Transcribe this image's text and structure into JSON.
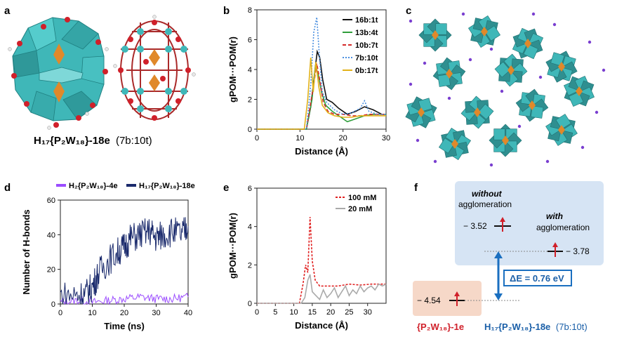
{
  "panels": {
    "a": {
      "label": "a",
      "caption_main": "H₁₇{P₂W₁₈}-18e",
      "caption_note": "(7b:10t)"
    },
    "b": {
      "label": "b"
    },
    "c": {
      "label": "c"
    },
    "d": {
      "label": "d"
    },
    "e": {
      "label": "e"
    },
    "f": {
      "label": "f",
      "without_line1": "without",
      "without_line2": "agglomeration",
      "with_line1": "with",
      "with_line2": "agglomeration",
      "e_without": "− 3.52",
      "e_with": "− 3.78",
      "e_bare": "− 4.54",
      "delta": "ΔE = 0.76 eV",
      "bare_label": "{P₂W₁₈}-1e",
      "agg_label": "H₁₇{P₂W₁₈}-18e",
      "agg_note": "(7b:10t)"
    }
  },
  "colors": {
    "polyhedra": "#3fb7b8",
    "phosphorus": "#e0892a",
    "oxygen": "#d0202a",
    "cation": "#7a3fd0",
    "bare_box": "#f6d8c8",
    "agg_box": "#d6e4f4",
    "delta_arrow": "#1a6fc0"
  },
  "chart_data": [
    {
      "panel": "b",
      "type": "line",
      "title": "",
      "xlabel": "Distance (Å)",
      "ylabel": "gPOM···POM(r)",
      "xlim": [
        0,
        30
      ],
      "ylim": [
        0,
        8
      ],
      "xticks": [
        0,
        10,
        20,
        30
      ],
      "yticks": [
        0,
        2,
        4,
        6,
        8
      ],
      "legend_position": "top-right",
      "series": [
        {
          "name": "16b:1t",
          "color": "#111111",
          "dash": "",
          "x": [
            0,
            11.5,
            12.5,
            13.3,
            14.0,
            14.6,
            15.3,
            16.2,
            17.5,
            19,
            21,
            23,
            25,
            27,
            29,
            30
          ],
          "y": [
            0,
            0,
            1.5,
            3.5,
            5.2,
            4.8,
            3.3,
            2.0,
            1.8,
            1.4,
            1.0,
            1.2,
            1.5,
            1.3,
            1.0,
            1.0
          ]
        },
        {
          "name": "13b:4t",
          "color": "#2e9e3a",
          "dash": "",
          "x": [
            0,
            11.5,
            12.8,
            13.6,
            14.3,
            15.0,
            16.0,
            17.5,
            19,
            21,
            23,
            25,
            27,
            29,
            30
          ],
          "y": [
            0,
            0,
            2.0,
            4.3,
            3.6,
            2.5,
            1.6,
            1.2,
            0.9,
            0.5,
            0.7,
            0.9,
            1.0,
            1.0,
            1.0
          ]
        },
        {
          "name": "10b:7t",
          "color": "#d42a2a",
          "dash": "5,3",
          "x": [
            0,
            11.5,
            12.5,
            13.2,
            13.9,
            14.6,
            15.4,
            16.5,
            18,
            20,
            22,
            24,
            26,
            28,
            30
          ],
          "y": [
            0,
            0,
            1.8,
            3.0,
            4.4,
            3.3,
            1.8,
            1.2,
            1.0,
            1.0,
            0.9,
            0.9,
            1.0,
            1.0,
            1.0
          ]
        },
        {
          "name": "7b:10t",
          "color": "#4a8fe0",
          "dash": "2,2",
          "x": [
            0,
            11.5,
            12.5,
            13.2,
            13.9,
            14.5,
            15.2,
            16.2,
            18,
            20,
            22,
            24,
            25,
            26,
            28,
            30
          ],
          "y": [
            0,
            0,
            3.0,
            6.5,
            7.5,
            5.0,
            2.5,
            1.8,
            1.3,
            1.0,
            1.1,
            1.4,
            1.9,
            1.2,
            1.0,
            1.0
          ]
        },
        {
          "name": "0b:17t",
          "color": "#e2b21a",
          "dash": "",
          "x": [
            0,
            11.0,
            11.8,
            12.5,
            13.1,
            13.7,
            14.4,
            15.2,
            16.5,
            18,
            20,
            22,
            24,
            26,
            28,
            30
          ],
          "y": [
            0,
            0,
            2.0,
            4.8,
            2.5,
            4.5,
            2.8,
            1.6,
            1.1,
            0.9,
            0.8,
            0.8,
            0.9,
            0.9,
            0.9,
            0.9
          ]
        }
      ]
    },
    {
      "panel": "d",
      "type": "line",
      "title": "",
      "xlabel": "Time (ns)",
      "ylabel": "Number of H-bonds",
      "xlim": [
        0,
        40
      ],
      "ylim": [
        0,
        60
      ],
      "xticks": [
        0,
        10,
        20,
        30,
        40
      ],
      "yticks": [
        0,
        20,
        40,
        60
      ],
      "legend_position": "top",
      "series": [
        {
          "name": "H₂{P₂W₁₈}-4e",
          "color": "#9b4dff",
          "x": [
            0,
            5,
            10,
            15,
            20,
            25,
            30,
            35,
            40
          ],
          "y": [
            1,
            2,
            1,
            2,
            3,
            4,
            3,
            3,
            4
          ]
        },
        {
          "name": "H₁₇{P₂W₁₈}-18e",
          "color": "#1a2a6c",
          "x": [
            0,
            5,
            8,
            10,
            12,
            15,
            18,
            20,
            22,
            25,
            28,
            30,
            32,
            35,
            38,
            40
          ],
          "y": [
            5,
            5,
            6,
            10,
            18,
            25,
            30,
            33,
            38,
            40,
            42,
            38,
            40,
            42,
            40,
            45
          ]
        }
      ]
    },
    {
      "panel": "e",
      "type": "line",
      "title": "",
      "xlabel": "Distance (Å)",
      "ylabel": "gPOM···POM(r)",
      "xlim": [
        0,
        35
      ],
      "ylim": [
        0,
        6
      ],
      "xticks": [
        0,
        5,
        10,
        15,
        20,
        25,
        30
      ],
      "yticks": [
        0,
        2,
        4,
        6
      ],
      "legend_position": "top-right",
      "series": [
        {
          "name": "100 mM",
          "color": "#e02020",
          "dash": "3,2",
          "x": [
            0,
            11.5,
            12.5,
            13.2,
            13.8,
            14.4,
            15.0,
            15.8,
            17,
            19,
            22,
            25,
            28,
            31,
            34,
            35
          ],
          "y": [
            0,
            0,
            1.0,
            2.0,
            1.6,
            4.5,
            2.2,
            1.2,
            0.9,
            0.9,
            0.9,
            1.0,
            0.95,
            1.0,
            1.0,
            1.0
          ]
        },
        {
          "name": "20 mM",
          "color": "#aaaaaa",
          "dash": "",
          "x": [
            0,
            12.0,
            13.0,
            13.8,
            14.4,
            15.0,
            16,
            17,
            18,
            19,
            20,
            21,
            22,
            23,
            24,
            25,
            26,
            27,
            28,
            29,
            30,
            31,
            32,
            33,
            34,
            35
          ],
          "y": [
            0,
            0,
            0.3,
            1.2,
            1.5,
            0.6,
            0.4,
            0.2,
            0.7,
            0.3,
            0.5,
            0.8,
            0.3,
            0.6,
            0.9,
            0.4,
            0.7,
            0.5,
            0.9,
            0.6,
            0.8,
            0.9,
            0.7,
            1.0,
            0.9,
            1.0
          ]
        }
      ]
    }
  ]
}
